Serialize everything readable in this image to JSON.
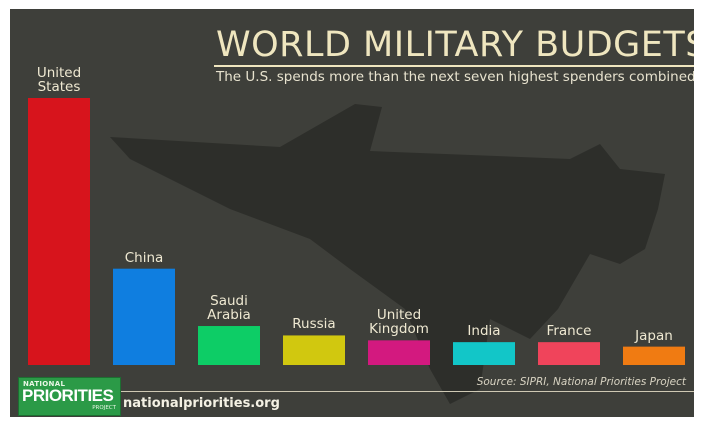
{
  "header": {
    "title": "WORLD MILITARY BUDGETS",
    "subtitle": "The U.S. spends more than the next seven highest spenders combined."
  },
  "footer": {
    "source": "Source: SIPRI, National Priorities Project",
    "logo_top": "NATIONAL",
    "logo_main": "PRIORITIES",
    "logo_bottom": "PROJECT",
    "site": "nationalpriorities.org"
  },
  "colors": {
    "background": "#3e3f3a",
    "silhouette": "#2d2e2a"
  },
  "chart_data": {
    "type": "bar",
    "title": "WORLD MILITARY BUDGETS",
    "subtitle": "The U.S. spends more than the next seven highest spenders combined.",
    "xlabel": "",
    "ylabel": "",
    "grid": false,
    "categories": [
      "United\nStates",
      "China",
      "Saudi\nArabia",
      "Russia",
      "United\nKingdom",
      "India",
      "France",
      "Japan"
    ],
    "values": [
      596,
      215,
      87,
      66,
      55,
      51,
      51,
      41
    ],
    "colors": [
      "#d7141c",
      "#0f7ee0",
      "#0dcd66",
      "#d1c80f",
      "#d3197f",
      "#12c6c8",
      "#f0445b",
      "#f07b12"
    ],
    "ylim": [
      0,
      596
    ]
  }
}
